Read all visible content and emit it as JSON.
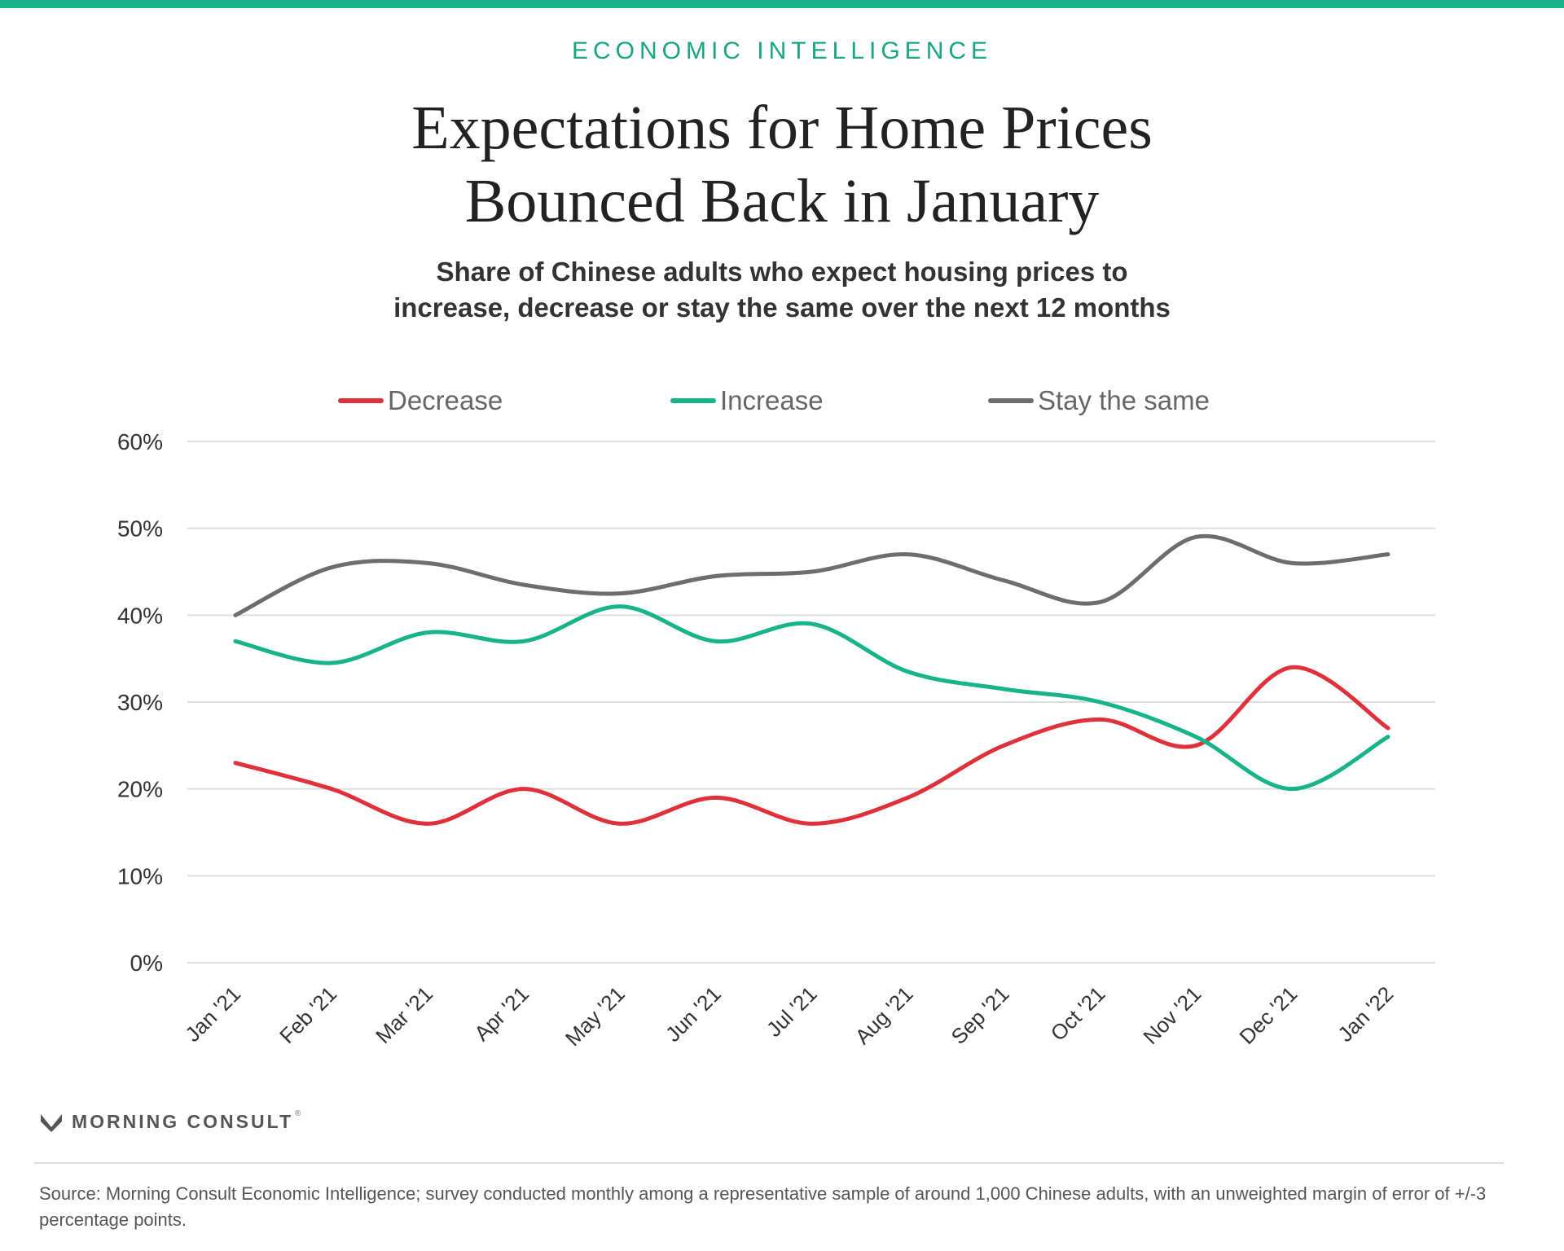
{
  "header": {
    "kicker": "ECONOMIC INTELLIGENCE",
    "title_line1": "Expectations for Home Prices",
    "title_line2": "Bounced Back in January",
    "subtitle_line1": "Share of Chinese adults who expect housing prices to",
    "subtitle_line2": "increase, decrease or stay the same over the next 12 months"
  },
  "colors": {
    "accent": "#17b38a",
    "decrease": "#e0303a",
    "increase": "#17b38a",
    "stay": "#6d6d6f",
    "grid": "#dddddd",
    "axis_text": "#333333"
  },
  "chart_data": {
    "type": "line",
    "x": [
      "Jan '21",
      "Feb '21",
      "Mar '21",
      "Apr '21",
      "May '21",
      "Jun '21",
      "Jul '21",
      "Aug '21",
      "Sep '21",
      "Oct '21",
      "Nov '21",
      "Dec '21",
      "Jan '22"
    ],
    "series": [
      {
        "name": "Decrease",
        "color": "#e0303a",
        "values": [
          23,
          20,
          16,
          20,
          16,
          19,
          16,
          19,
          25,
          28,
          25,
          34,
          27
        ]
      },
      {
        "name": "Increase",
        "color": "#17b38a",
        "values": [
          37,
          34.5,
          38,
          37,
          41,
          37,
          39,
          33.5,
          31.5,
          30,
          26,
          20,
          26
        ]
      },
      {
        "name": "Stay the same",
        "color": "#6d6d6f",
        "values": [
          40,
          45.5,
          46,
          43.5,
          42.5,
          44.5,
          45,
          47,
          44,
          41.5,
          49,
          46,
          47
        ]
      }
    ],
    "yticks": [
      "0%",
      "10%",
      "20%",
      "30%",
      "40%",
      "50%",
      "60%"
    ],
    "ylim": [
      0,
      60
    ],
    "grid": true,
    "legend_position": "top"
  },
  "branding": {
    "name": "MORNING CONSULT",
    "trademark": "®"
  },
  "footer": {
    "source": "Source: Morning Consult Economic Intelligence; survey conducted monthly among a representative sample of around 1,000 Chinese adults, with an unweighted margin of error of +/-3 percentage points."
  }
}
